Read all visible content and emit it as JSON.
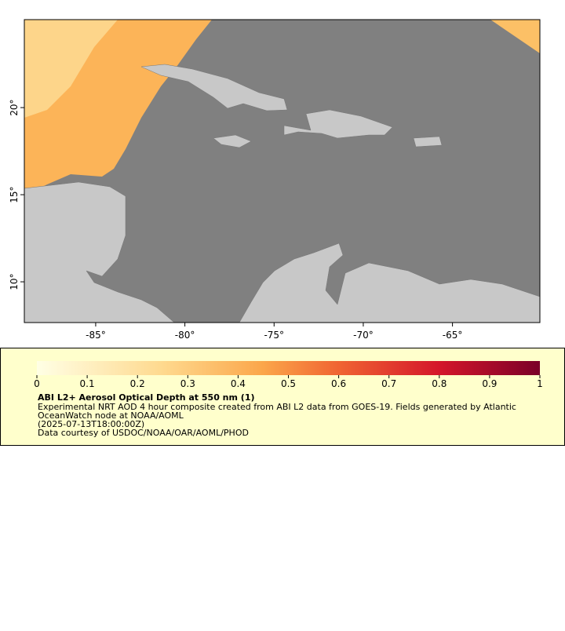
{
  "map": {
    "xlim": [
      -89,
      -60.1
    ],
    "ylim": [
      7.66,
      25.05
    ],
    "xticks": [
      {
        "value": -85,
        "label": "-85°"
      },
      {
        "value": -80,
        "label": "-80°"
      },
      {
        "value": -75,
        "label": "-75°"
      },
      {
        "value": -70,
        "label": "-70°"
      },
      {
        "value": -65,
        "label": "-65°"
      }
    ],
    "yticks": [
      {
        "value": 10,
        "label": "10°"
      },
      {
        "value": 15,
        "label": "15°"
      },
      {
        "value": 20,
        "label": "20°"
      }
    ]
  },
  "colorbar": {
    "range": [
      0,
      1
    ],
    "ticks": [
      0,
      0.1,
      0.2,
      0.3,
      0.4,
      0.5,
      0.6,
      0.7,
      0.8,
      0.9,
      1
    ]
  },
  "legend": {
    "title": "ABI L2+ Aerosol Optical Depth at 550 nm (1)",
    "lines": [
      "Experimental NRT AOD 4 hour composite created from ABI L2 data from GOES-19. Fields generated by Atlantic",
      "OceanWatch node at NOAA/AOML",
      "(2025-07-13T18:00:00Z)",
      "Data courtesy of USDOC/NOAA/OAR/AOML/PHOD"
    ]
  }
}
